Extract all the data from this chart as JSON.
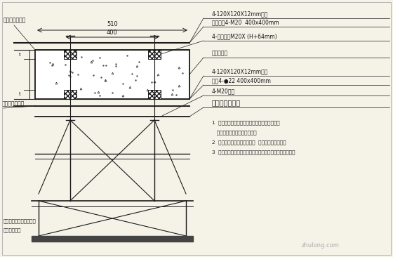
{
  "bg_color": "#f5f2e8",
  "line_color": "#1a1a1a",
  "text_color": "#1a1a1a",
  "watermark": "zhulong.com",
  "right_labels": [
    "4-120X120X12mm钢板",
    "钻孔攻丝4-M20  400x400mm",
    "4-双头螺栓M20X (H+64mm)",
    "混凝土楼板",
    "4-120X120X12mm钢板",
    "钻孔4-●22 400x400mm",
    "4-M20螺母",
    "螺母与钢板满焊"
  ],
  "left_labels": [
    "螺栓与钢板满焊",
    "螺母与钢板满焊"
  ],
  "notes": [
    "1  图中实线部分为整体式预埋件，按我方提供的",
    "   中心图尺寸由土建施工预埋。",
    "2  图中虚线部分为焊接式支架  由我方施工时装配。",
    "3  本安装图仅供施工参考，具体做法可根据现场条件确定。"
  ],
  "bottom_left": [
    "标高窗根据吊架，无影灯",
    "厂家参数而定"
  ]
}
